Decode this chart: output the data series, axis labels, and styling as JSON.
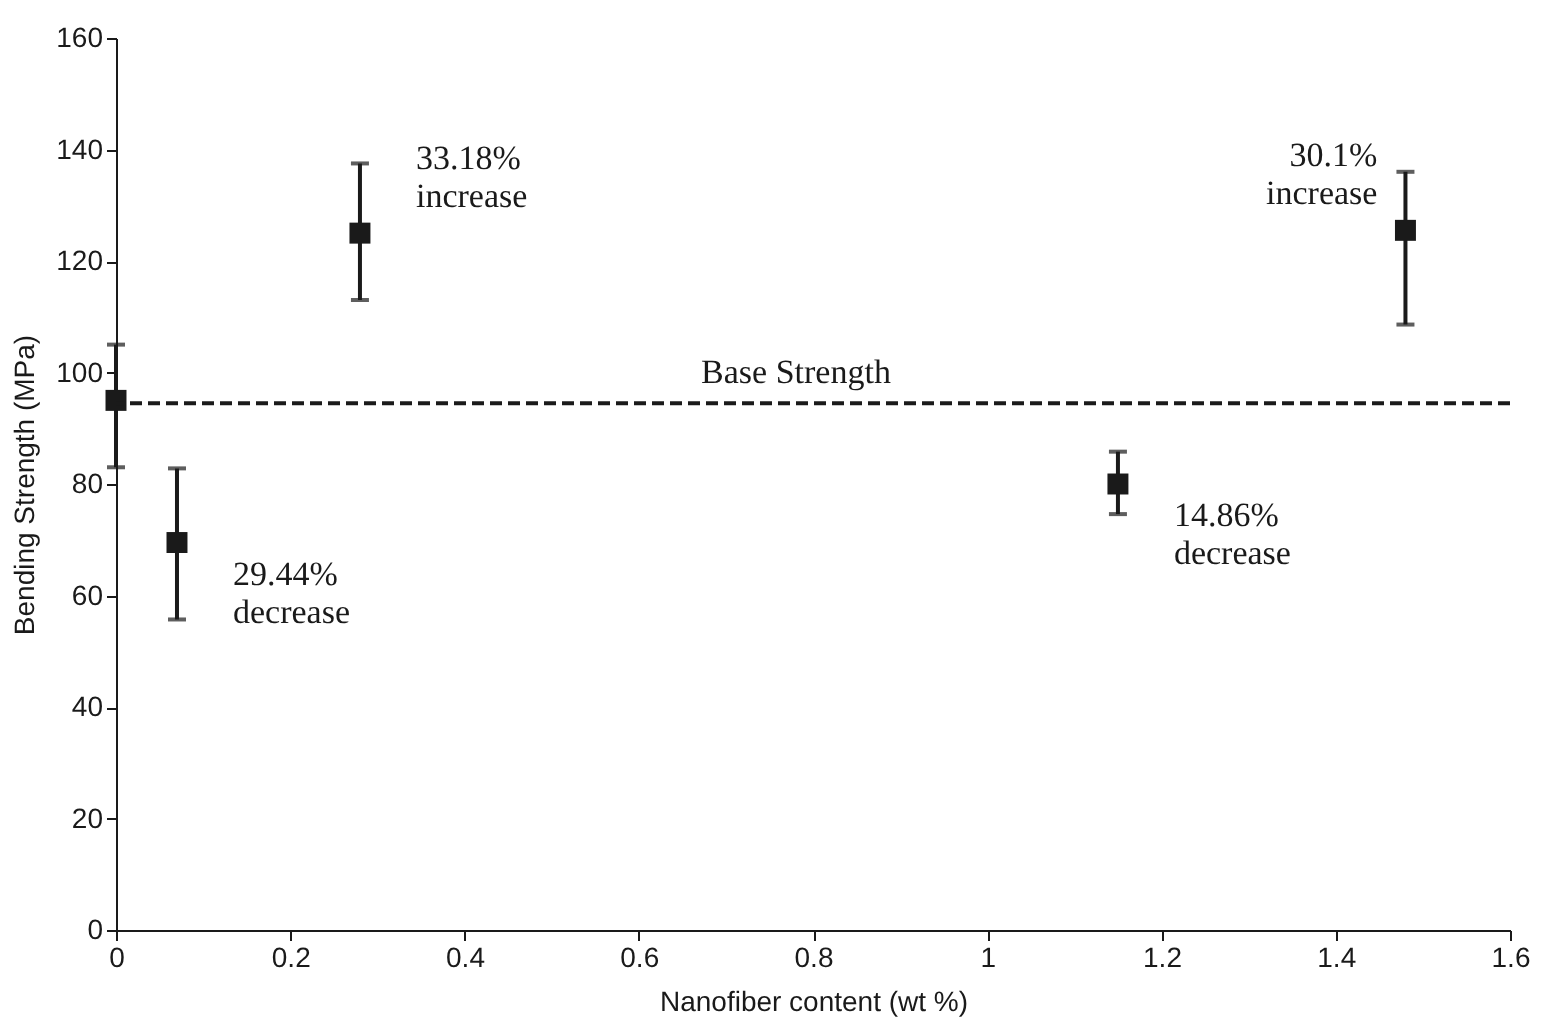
{
  "chart_data": {
    "type": "scatter",
    "xlabel": "Nanofiber content (wt %)",
    "ylabel": "Bending Strength (MPa)",
    "x": [
      0,
      0.07,
      0.28,
      1.15,
      1.48
    ],
    "series": [
      {
        "color": "#1a1a1a",
        "values": [
          95,
          69.5,
          125,
          80,
          125.5
        ],
        "errors": [
          [
            83,
            105
          ],
          [
            55.7,
            82.8
          ],
          [
            113,
            137.5
          ],
          [
            74.6,
            85.8
          ],
          [
            108.6,
            136
          ]
        ]
      }
    ],
    "marker": "square",
    "xlim": [
      0,
      1.6
    ],
    "xticks": [
      0,
      0.2,
      0.4,
      0.6,
      0.8,
      1,
      1.2,
      1.4,
      1.6
    ],
    "ylim": [
      0,
      160
    ],
    "yticks": [
      0,
      20,
      40,
      60,
      80,
      100,
      120,
      140,
      160
    ],
    "grid": false,
    "ref_lines": [
      {
        "axis": "y",
        "value": 94.5,
        "label": "Base Strength",
        "line_style": "dashed",
        "color": "#1a1a1a"
      }
    ],
    "annotations": [
      {
        "text": "29.44%\ndecrease",
        "x": 0.07,
        "y": 69.5
      },
      {
        "text": "33.18%\nincrease",
        "x": 0.28,
        "y": 125
      },
      {
        "text": "14.86%\ndecrease",
        "x": 1.15,
        "y": 80
      },
      {
        "text": "30.1%\nincrease",
        "x": 1.48,
        "y": 125.5
      }
    ]
  }
}
